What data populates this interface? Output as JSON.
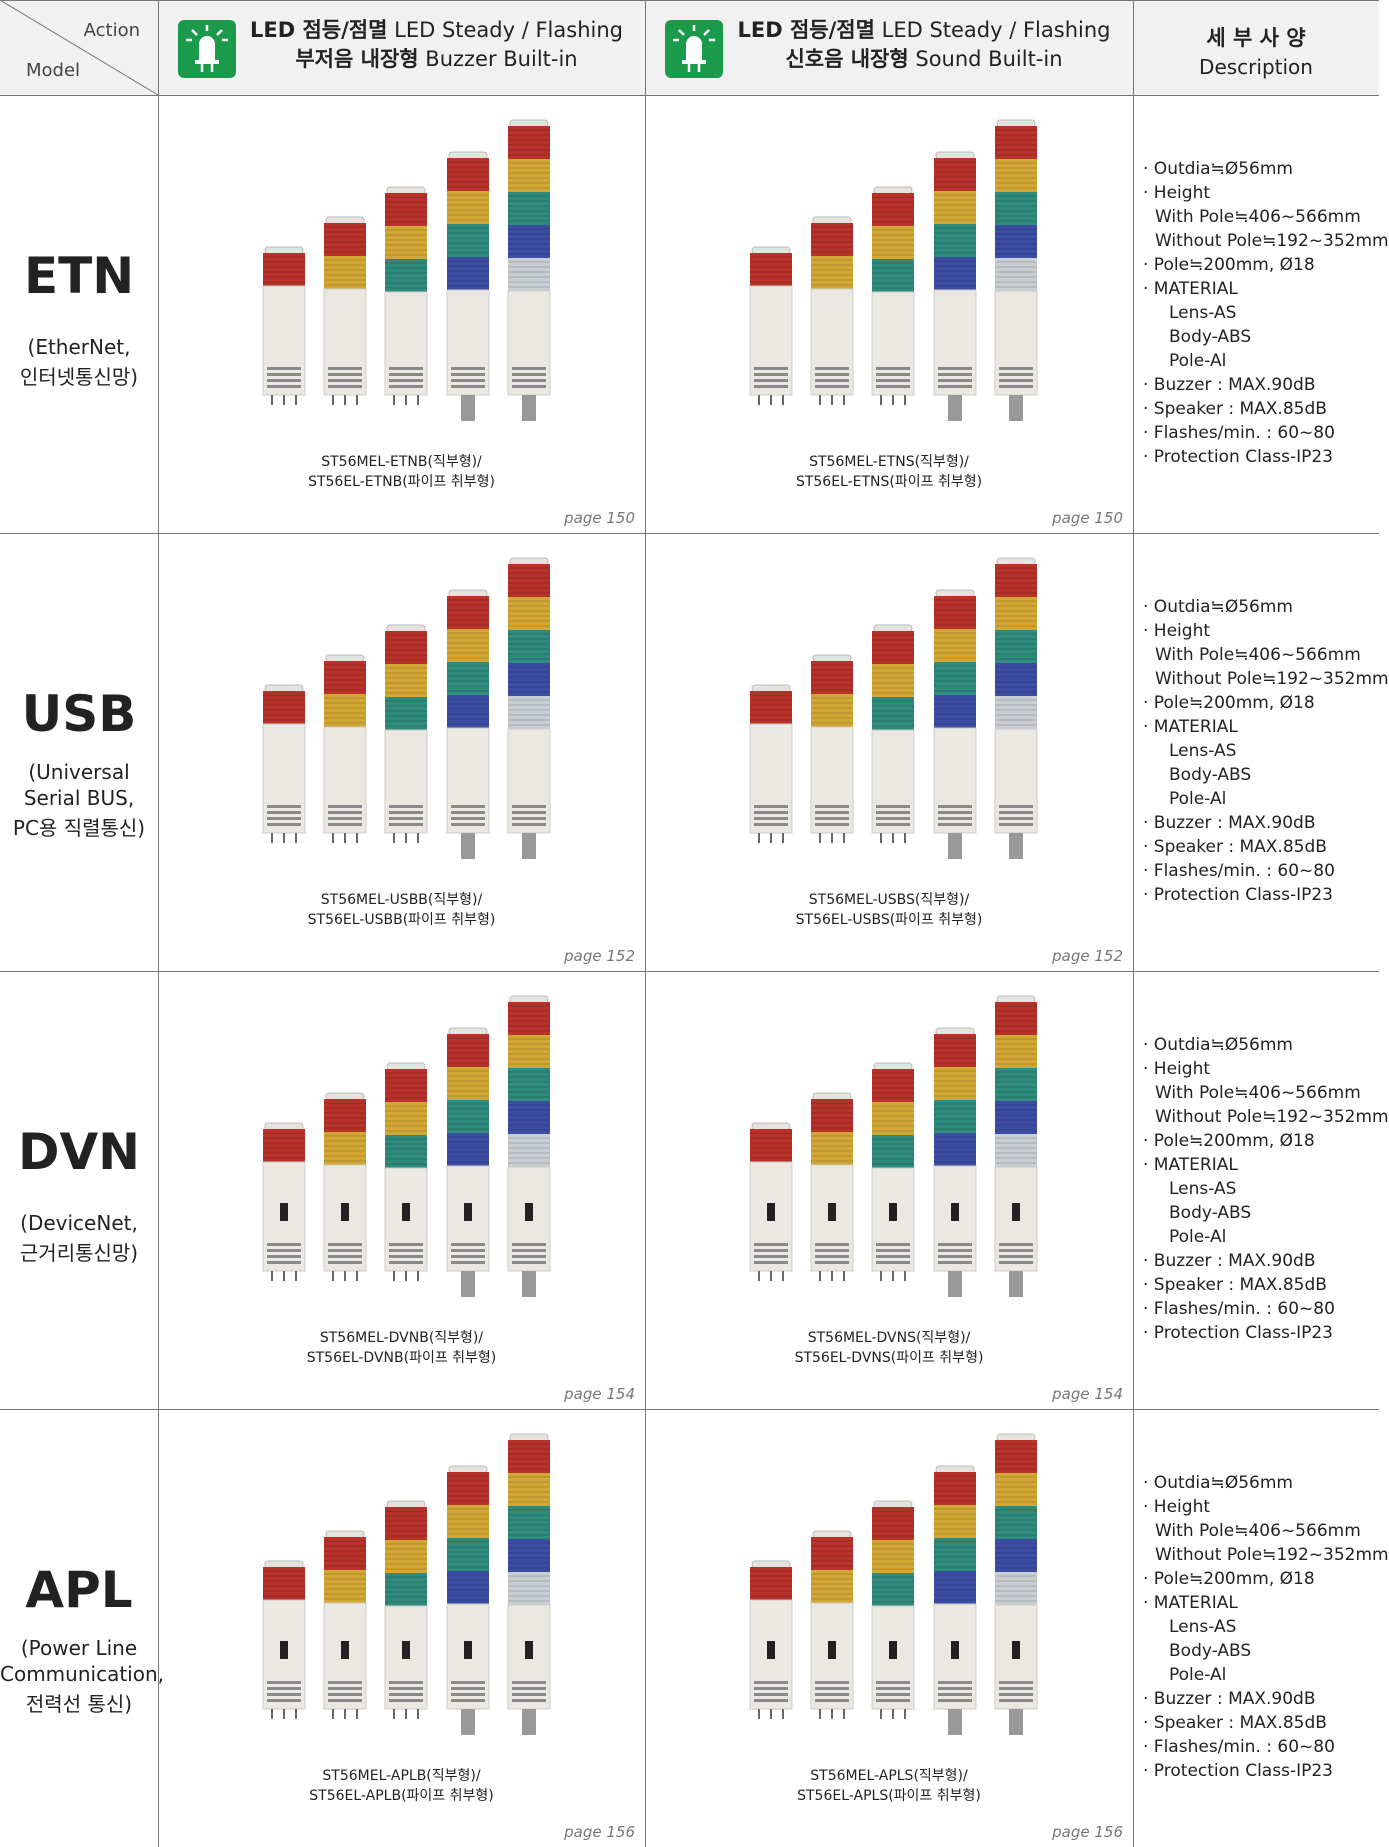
{
  "header": {
    "corner_action": "Action",
    "corner_model": "Model",
    "buzzer": {
      "line1_ko": "LED 점등/점멸",
      "line1_en": "LED Steady / Flashing",
      "line2_ko": "부저음 내장형",
      "line2_en": "Buzzer Built-in"
    },
    "sound": {
      "line1_ko": "LED 점등/점멸",
      "line1_en": "LED Steady / Flashing",
      "line2_ko": "신호음 내장형",
      "line2_en": "Sound Built-in"
    },
    "description": {
      "ko": "세 부 사 양",
      "en": "Description"
    }
  },
  "rows": [
    {
      "model": "ETN",
      "note": [
        "(EtherNet,",
        "인터넷통신망)"
      ],
      "buzzer": {
        "code": [
          "ST56MEL-ETNB(직부형)/",
          "ST56EL-ETNB(파이프 취부형)"
        ],
        "page": "page 150"
      },
      "sound": {
        "code": [
          "ST56MEL-ETNS(직부형)/",
          "ST56EL-ETNS(파이프 취부형)"
        ],
        "page": "page 150"
      },
      "specs": [
        "· Outdia≒Ø56mm",
        "· Height",
        "With Pole≒406~566mm",
        "Without Pole≒192~352mm",
        "· Pole≒200mm, Ø18",
        "· MATERIAL",
        "Lens-AS",
        "Body-ABS",
        "Pole-Al",
        "· Buzzer : MAX.90dB",
        "· Speaker : MAX.85dB",
        "· Flashes/min. : 60~80",
        "· Protection Class-IP23"
      ]
    },
    {
      "model": "USB",
      "note": [
        "(Universal",
        "Serial BUS,",
        "PC용 직렬통신)"
      ],
      "buzzer": {
        "code": [
          "ST56MEL-USBB(직부형)/",
          "ST56EL-USBB(파이프 취부형)"
        ],
        "page": "page 152"
      },
      "sound": {
        "code": [
          "ST56MEL-USBS(직부형)/",
          "ST56EL-USBS(파이프 취부형)"
        ],
        "page": "page 152"
      },
      "specs": [
        "· Outdia≒Ø56mm",
        "· Height",
        "With Pole≒406~566mm",
        "Without Pole≒192~352mm",
        "· Pole≒200mm, Ø18",
        "· MATERIAL",
        "Lens-AS",
        "Body-ABS",
        "Pole-Al",
        "· Buzzer : MAX.90dB",
        "· Speaker : MAX.85dB",
        "· Flashes/min. : 60~80",
        "· Protection Class-IP23"
      ]
    },
    {
      "model": "DVN",
      "note": [
        "(DeviceNet,",
        "근거리통신망)"
      ],
      "buzzer": {
        "code": [
          "ST56MEL-DVNB(직부형)/",
          "ST56EL-DVNB(파이프 취부형)"
        ],
        "page": "page 154"
      },
      "sound": {
        "code": [
          "ST56MEL-DVNS(직부형)/",
          "ST56EL-DVNS(파이프 취부형)"
        ],
        "page": "page 154"
      },
      "specs": [
        "· Outdia≒Ø56mm",
        "· Height",
        "With Pole≒406~566mm",
        "Without Pole≒192~352mm",
        "· Pole≒200mm, Ø18",
        "· MATERIAL",
        "Lens-AS",
        "Body-ABS",
        "Pole-Al",
        "· Buzzer : MAX.90dB",
        "· Speaker : MAX.85dB",
        "· Flashes/min. : 60~80",
        "· Protection Class-IP23"
      ]
    },
    {
      "model": "APL",
      "note": [
        "(Power Line",
        "Communication,",
        "전력선 통신)"
      ],
      "buzzer": {
        "code": [
          "ST56MEL-APLB(직부형)/",
          "ST56EL-APLB(파이프 취부형)"
        ],
        "page": "page 156"
      },
      "sound": {
        "code": [
          "ST56MEL-APLS(직부형)/",
          "ST56EL-APLS(파이프 취부형)"
        ],
        "page": "page 156"
      },
      "specs": [
        "· Outdia≒Ø56mm",
        "· Height",
        "With Pole≒406~566mm",
        "Without Pole≒192~352mm",
        "· Pole≒200mm, Ø18",
        "· MATERIAL",
        "Lens-AS",
        "Body-ABS",
        "Pole-Al",
        "· Buzzer : MAX.90dB",
        "· Speaker : MAX.85dB",
        "· Flashes/min. : 60~80",
        "· Protection Class-IP23"
      ]
    }
  ]
}
